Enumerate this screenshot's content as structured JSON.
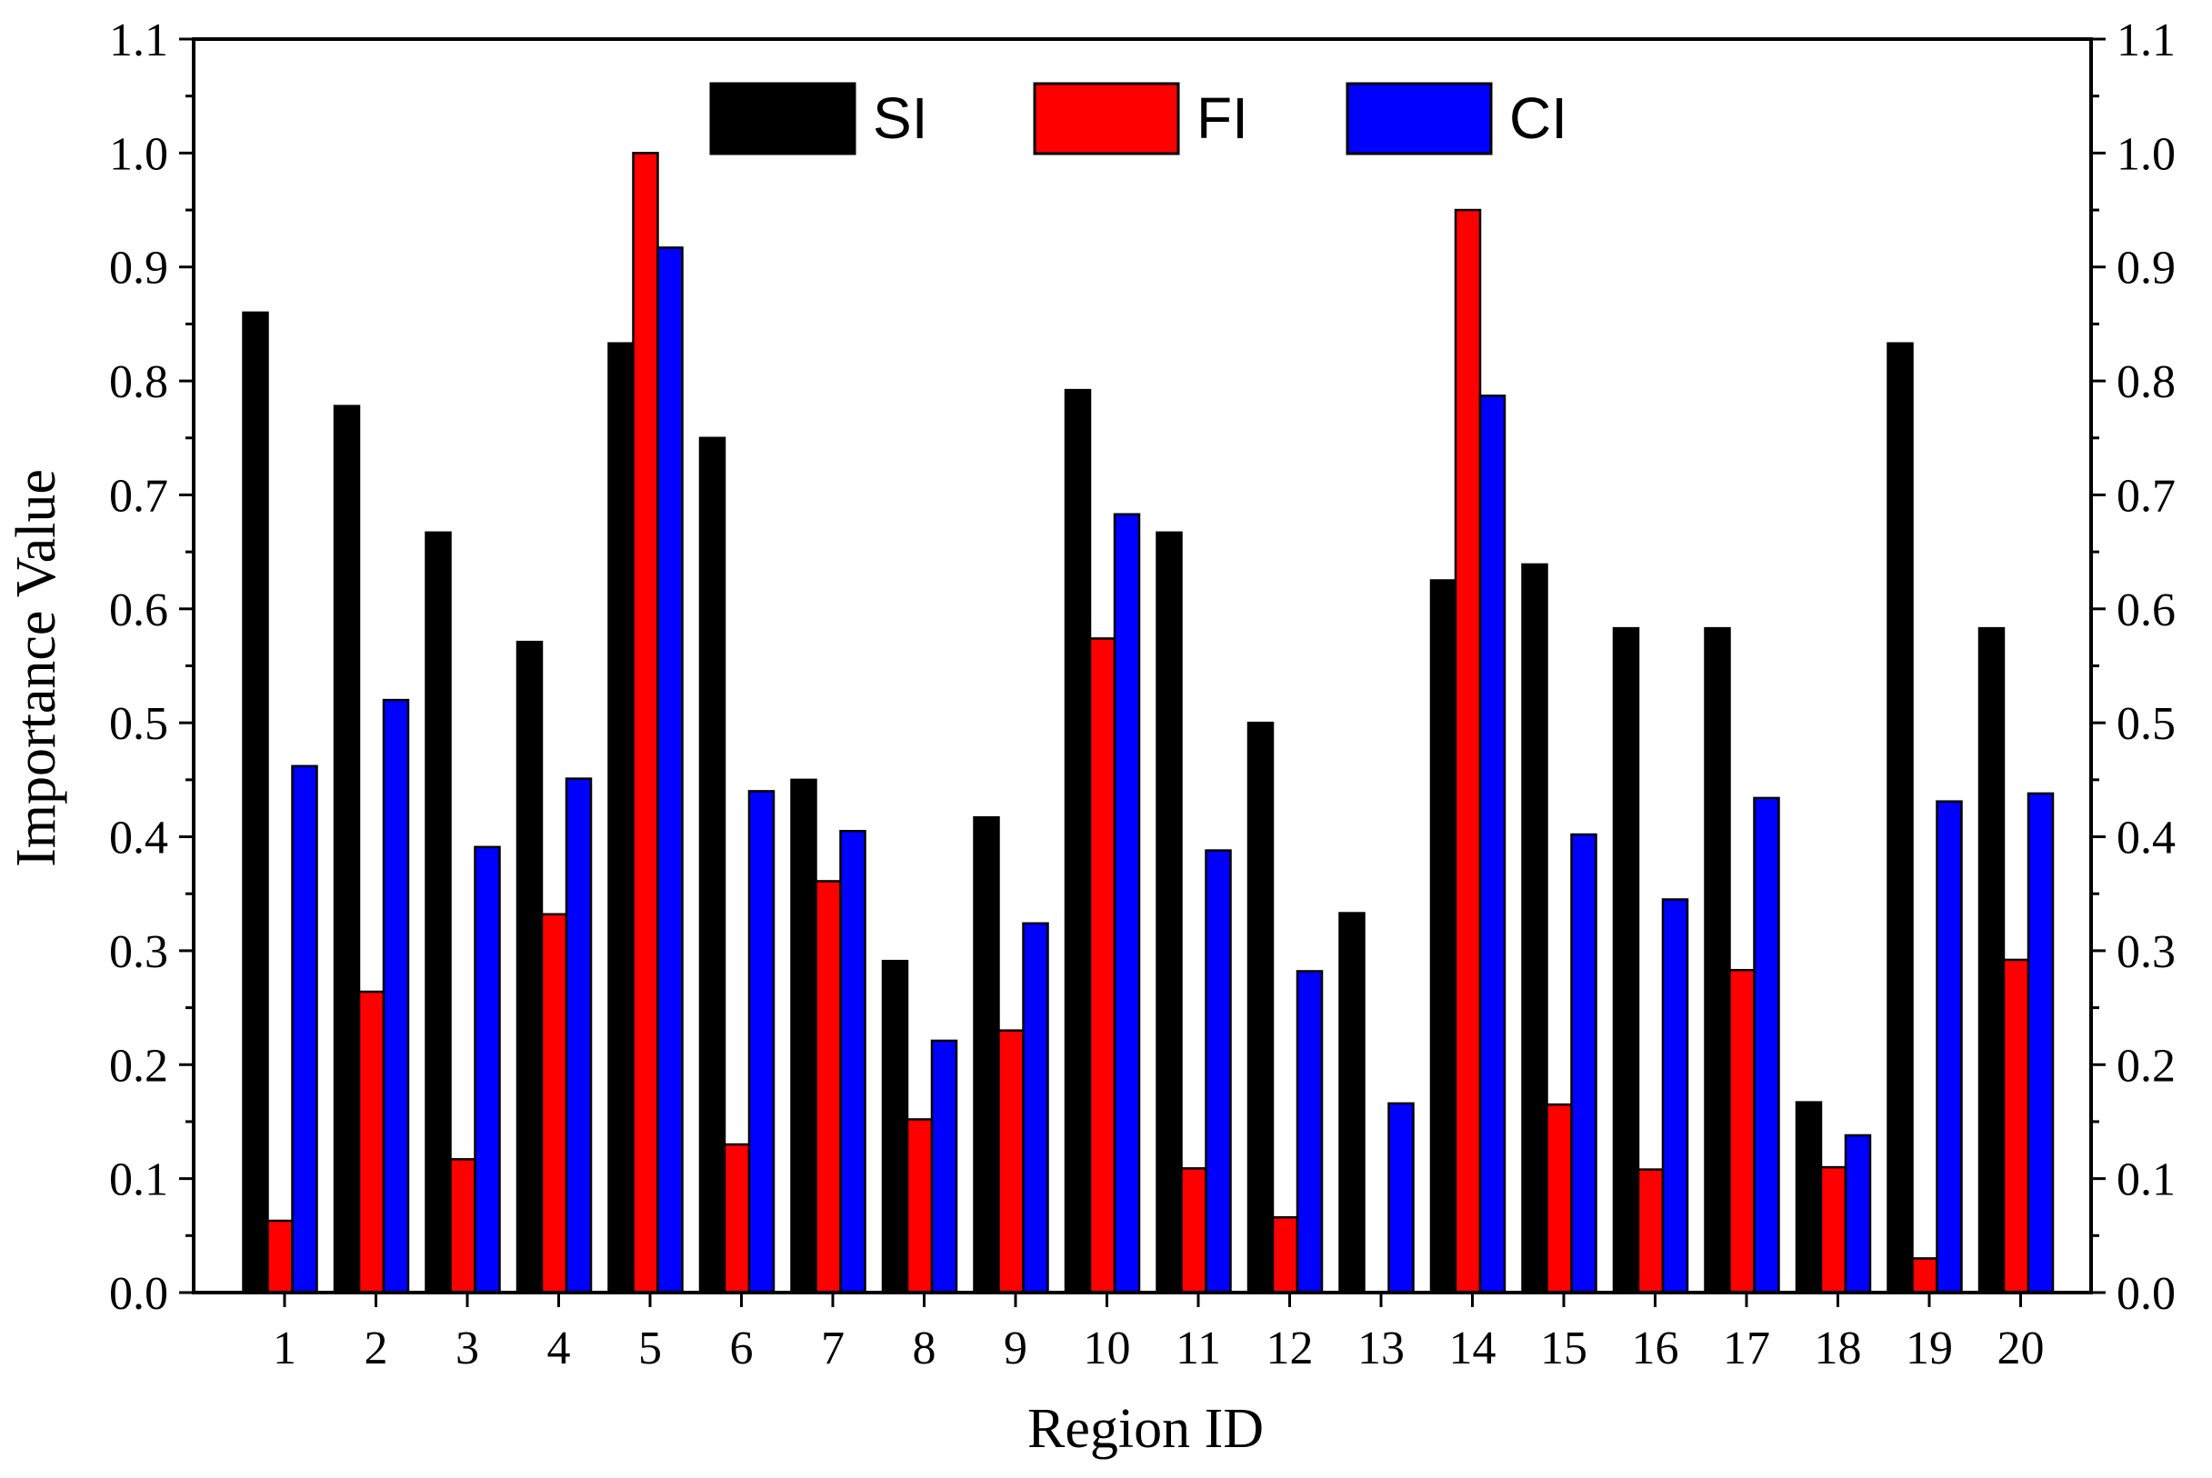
{
  "chart_data": {
    "type": "bar",
    "title": "",
    "xlabel": "Region ID",
    "ylabel": "Importance Value",
    "ylim": [
      0.0,
      1.1
    ],
    "yticks": [
      "0.0",
      "0.1",
      "0.2",
      "0.3",
      "0.4",
      "0.5",
      "0.6",
      "0.7",
      "0.8",
      "0.9",
      "1.0",
      "1.1"
    ],
    "categories": [
      "1",
      "2",
      "3",
      "4",
      "5",
      "6",
      "7",
      "8",
      "9",
      "10",
      "11",
      "12",
      "13",
      "14",
      "15",
      "16",
      "17",
      "18",
      "19",
      "20"
    ],
    "legend_position": "top-center",
    "series": [
      {
        "name": "SI",
        "color": "#000000",
        "values": [
          0.86,
          0.778,
          0.667,
          0.571,
          0.833,
          0.75,
          0.45,
          0.291,
          0.417,
          0.792,
          0.667,
          0.5,
          0.333,
          0.625,
          0.639,
          0.583,
          0.583,
          0.167,
          0.833,
          0.583
        ]
      },
      {
        "name": "FI",
        "color": "#ff0000",
        "values": [
          0.063,
          0.264,
          0.117,
          0.332,
          1.0,
          0.13,
          0.361,
          0.152,
          0.23,
          0.574,
          0.109,
          0.066,
          0.0,
          0.95,
          0.165,
          0.108,
          0.283,
          0.11,
          0.03,
          0.292
        ]
      },
      {
        "name": "CI",
        "color": "#0000ff",
        "values": [
          0.462,
          0.52,
          0.391,
          0.451,
          0.917,
          0.44,
          0.405,
          0.221,
          0.324,
          0.683,
          0.388,
          0.282,
          0.166,
          0.787,
          0.402,
          0.345,
          0.434,
          0.138,
          0.431,
          0.438
        ]
      }
    ]
  }
}
